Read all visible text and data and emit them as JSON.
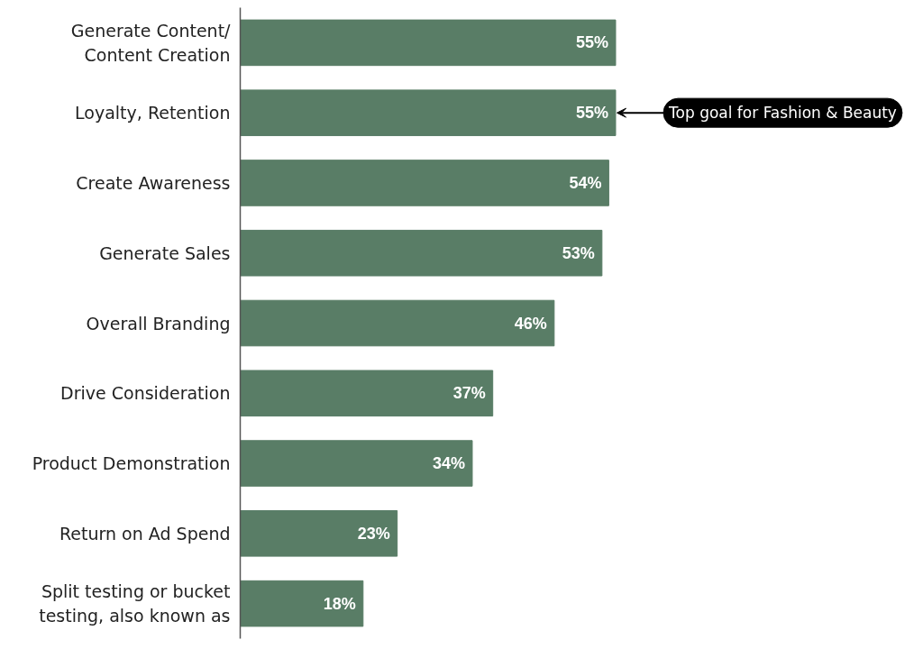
{
  "chart_data": {
    "type": "bar",
    "orientation": "horizontal",
    "categories": [
      "Generate Content/\nContent Creation",
      "Loyalty, Retention",
      "Create Awareness",
      "Generate Sales",
      "Overall Branding",
      "Drive Consideration",
      "Product Demonstration",
      "Return on Ad Spend",
      "Split testing or bucket\ntesting, also known as"
    ],
    "values": [
      55,
      55,
      54,
      53,
      46,
      37,
      34,
      23,
      18
    ],
    "color": "#597d66",
    "value_labels": [
      "55%",
      "55%",
      "54%",
      "53%",
      "46%",
      "37%",
      "34%",
      "23%",
      "18%"
    ],
    "tick_labels": "y",
    "annotations": [
      {
        "text": "Top goal for Fashion & Beauty",
        "x": 55,
        "y": "Loyalty, Retention"
      }
    ]
  }
}
